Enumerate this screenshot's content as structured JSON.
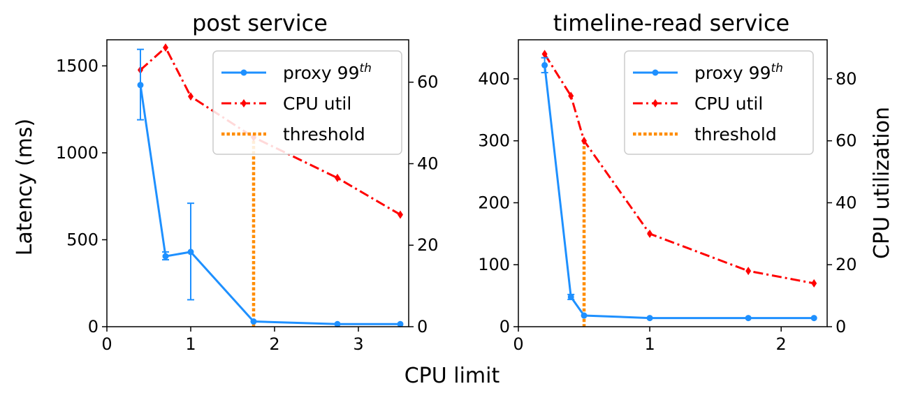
{
  "figure": {
    "shared_xlabel": "CPU limit",
    "right_ylabel": "CPU utilization"
  },
  "colors": {
    "latency": "#1E90FF",
    "cpu": "#FF0000",
    "threshold": "#FF8C00",
    "axes": "#000000"
  },
  "legend": {
    "proxy_label": "proxy 99",
    "proxy_sup": "th",
    "cpu_label": "CPU util",
    "threshold_label": "threshold"
  },
  "chart_data": [
    {
      "type": "line",
      "title": "post service",
      "xlabel": "CPU limit",
      "ylabel": "Latency (ms)",
      "y2label": "",
      "xlim": [
        0,
        3.6
      ],
      "ylim": [
        0,
        1650
      ],
      "y2lim": [
        0,
        70.4
      ],
      "xticks": [
        0,
        1,
        2,
        3
      ],
      "yticks": [
        0,
        500,
        1000,
        1500
      ],
      "y2ticks": [
        0,
        20,
        40,
        60
      ],
      "latency": {
        "name": "proxy 99th",
        "x": [
          0.4,
          0.7,
          1.0,
          1.75,
          2.75,
          3.5
        ],
        "y": [
          1390,
          405,
          430,
          30,
          15,
          15
        ],
        "err_low": [
          1190,
          385,
          155,
          28,
          14,
          14
        ],
        "err_high": [
          1595,
          430,
          710,
          32,
          16,
          16
        ]
      },
      "cpu": {
        "name": "CPU util",
        "x": [
          0.4,
          0.7,
          1.0,
          1.75,
          2.75,
          3.5
        ],
        "y": [
          63,
          68.5,
          56.5,
          46.5,
          36.5,
          27.5
        ]
      },
      "threshold": {
        "name": "threshold",
        "x": 1.75,
        "y_top": 1100
      }
    },
    {
      "type": "line",
      "title": "timeline-read service",
      "xlabel": "",
      "ylabel": "",
      "y2label": "CPU utilization",
      "xlim": [
        0,
        2.35
      ],
      "ylim": [
        0,
        463
      ],
      "y2lim": [
        0,
        92.6
      ],
      "xticks": [
        0,
        1,
        2
      ],
      "yticks": [
        0,
        100,
        200,
        300,
        400
      ],
      "y2ticks": [
        0,
        20,
        40,
        60,
        80
      ],
      "latency": {
        "name": "proxy 99th",
        "x": [
          0.2,
          0.4,
          0.5,
          1.0,
          1.75,
          2.25
        ],
        "y": [
          422,
          48,
          18,
          14,
          14,
          14
        ],
        "err_low": [
          410,
          44,
          17,
          13,
          13,
          13
        ],
        "err_high": [
          434,
          52,
          19,
          15,
          15,
          15
        ]
      },
      "cpu": {
        "name": "CPU util",
        "x": [
          0.2,
          0.4,
          0.5,
          1.0,
          1.75,
          2.25
        ],
        "y": [
          88,
          74.5,
          60,
          30,
          18,
          14
        ]
      },
      "threshold": {
        "name": "threshold",
        "x": 0.5,
        "y_top": 300
      }
    }
  ]
}
